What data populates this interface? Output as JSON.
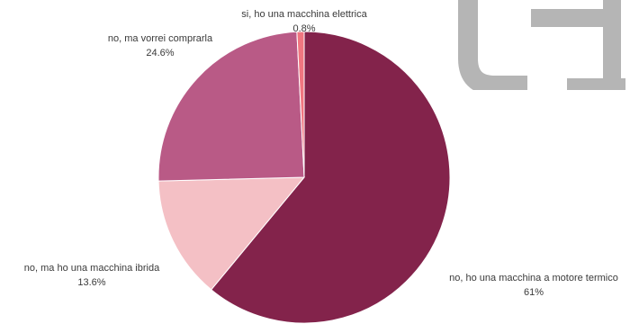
{
  "chart_data": {
    "type": "pie",
    "title": "",
    "slices": [
      {
        "label": "no, ho una macchina a motore termico",
        "value": 61,
        "display": "61%",
        "color": "#83234b"
      },
      {
        "label": "no, ma ho una macchina ibrida",
        "value": 13.6,
        "display": "13.6%",
        "color": "#f4c0c5"
      },
      {
        "label": "no, ma vorrei comprarla",
        "value": 24.6,
        "display": "24.6%",
        "color": "#b95a86"
      },
      {
        "label": "si, ho una macchina elettrica",
        "value": 0.8,
        "display": "0.8%",
        "color": "#f07680"
      }
    ],
    "start_angle_deg": 0,
    "direction": "clockwise",
    "legend": "none"
  },
  "logo": {
    "icon": "logo-mark-icon",
    "color": "#b5b5b5"
  }
}
